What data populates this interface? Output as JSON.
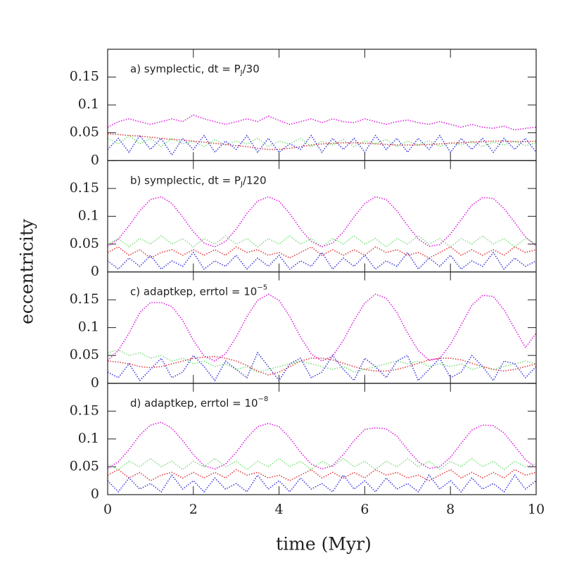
{
  "figure": {
    "xlabel": "time (Myr)",
    "ylabel": "eccentricity"
  },
  "chart_data": [
    {
      "type": "line",
      "title": [
        {
          "text": "a) symplectic, dt = P"
        },
        {
          "text": "J",
          "script": "sub"
        },
        {
          "text": "/30"
        }
      ],
      "x": [
        0,
        0.25,
        0.5,
        0.75,
        1,
        1.25,
        1.5,
        1.75,
        2,
        2.25,
        2.5,
        2.75,
        3,
        3.25,
        3.5,
        3.75,
        4,
        4.25,
        4.5,
        4.75,
        5,
        5.25,
        5.5,
        5.75,
        6,
        6.25,
        6.5,
        6.75,
        7,
        7.25,
        7.5,
        7.75,
        8,
        8.25,
        8.5,
        8.75,
        9,
        9.25,
        9.5,
        9.75,
        10
      ],
      "xlim": [
        0,
        10
      ],
      "xticks": [
        0,
        2,
        4,
        6,
        8,
        10
      ],
      "ylim": [
        0,
        0.2
      ],
      "yticks": [
        0,
        0.05,
        0.1,
        0.15
      ],
      "series": [
        {
          "color": "#80e080",
          "values": [
            0.04,
            0.03,
            0.045,
            0.03,
            0.04,
            0.025,
            0.04,
            0.03,
            0.035,
            0.025,
            0.038,
            0.028,
            0.035,
            0.03,
            0.04,
            0.025,
            0.035,
            0.03,
            0.04,
            0.025,
            0.035,
            0.028,
            0.038,
            0.025,
            0.035,
            0.03,
            0.038,
            0.025,
            0.035,
            0.028,
            0.036,
            0.025,
            0.033,
            0.028,
            0.035,
            0.025,
            0.033,
            0.028,
            0.035,
            0.027,
            0.032
          ]
        },
        {
          "color": "#e04040",
          "values": [
            0.048,
            0.047,
            0.045,
            0.044,
            0.042,
            0.04,
            0.038,
            0.037,
            0.035,
            0.033,
            0.031,
            0.029,
            0.027,
            0.025,
            0.022,
            0.02,
            0.02,
            0.022,
            0.025,
            0.028,
            0.03,
            0.031,
            0.032,
            0.032,
            0.031,
            0.03,
            0.029,
            0.028,
            0.028,
            0.028,
            0.029,
            0.03,
            0.031,
            0.032,
            0.033,
            0.034,
            0.035,
            0.035,
            0.034,
            0.034,
            0.035
          ]
        },
        {
          "color": "#4040e0",
          "values": [
            0.02,
            0.04,
            0.015,
            0.045,
            0.02,
            0.04,
            0.01,
            0.04,
            0.02,
            0.045,
            0.015,
            0.035,
            0.02,
            0.045,
            0.015,
            0.04,
            0.015,
            0.03,
            0.02,
            0.045,
            0.015,
            0.04,
            0.02,
            0.04,
            0.015,
            0.045,
            0.02,
            0.04,
            0.015,
            0.04,
            0.02,
            0.045,
            0.015,
            0.04,
            0.02,
            0.04,
            0.015,
            0.04,
            0.02,
            0.04,
            0.015
          ]
        },
        {
          "color": "#e020e0",
          "values": [
            0.06,
            0.07,
            0.075,
            0.07,
            0.065,
            0.07,
            0.075,
            0.07,
            0.082,
            0.075,
            0.07,
            0.065,
            0.07,
            0.075,
            0.07,
            0.08,
            0.072,
            0.065,
            0.07,
            0.075,
            0.068,
            0.075,
            0.07,
            0.068,
            0.075,
            0.07,
            0.065,
            0.07,
            0.073,
            0.068,
            0.065,
            0.07,
            0.065,
            0.06,
            0.065,
            0.06,
            0.058,
            0.062,
            0.055,
            0.058,
            0.06
          ]
        }
      ]
    },
    {
      "type": "line",
      "title": [
        {
          "text": "b) symplectic, dt = P"
        },
        {
          "text": "J",
          "script": "sub"
        },
        {
          "text": "/120"
        }
      ],
      "x": [
        0,
        0.25,
        0.5,
        0.75,
        1,
        1.25,
        1.5,
        1.75,
        2,
        2.25,
        2.5,
        2.75,
        3,
        3.25,
        3.5,
        3.75,
        4,
        4.25,
        4.5,
        4.75,
        5,
        5.25,
        5.5,
        5.75,
        6,
        6.25,
        6.5,
        6.75,
        7,
        7.25,
        7.5,
        7.75,
        8,
        8.25,
        8.5,
        8.75,
        9,
        9.25,
        9.5,
        9.75,
        10
      ],
      "xlim": [
        0,
        10
      ],
      "xticks": [
        0,
        2,
        4,
        6,
        8,
        10
      ],
      "ylim": [
        0,
        0.2
      ],
      "yticks": [
        0,
        0.05,
        0.1,
        0.15
      ],
      "series": [
        {
          "color": "#80e080",
          "values": [
            0.05,
            0.06,
            0.045,
            0.06,
            0.05,
            0.065,
            0.05,
            0.06,
            0.045,
            0.06,
            0.05,
            0.065,
            0.05,
            0.06,
            0.045,
            0.06,
            0.05,
            0.065,
            0.05,
            0.06,
            0.045,
            0.06,
            0.05,
            0.065,
            0.05,
            0.06,
            0.045,
            0.06,
            0.05,
            0.065,
            0.05,
            0.06,
            0.045,
            0.06,
            0.05,
            0.065,
            0.05,
            0.06,
            0.045,
            0.06,
            0.05
          ]
        },
        {
          "color": "#e04040",
          "values": [
            0.035,
            0.045,
            0.03,
            0.04,
            0.025,
            0.035,
            0.04,
            0.03,
            0.04,
            0.03,
            0.04,
            0.03,
            0.045,
            0.035,
            0.04,
            0.03,
            0.035,
            0.025,
            0.035,
            0.045,
            0.03,
            0.04,
            0.03,
            0.04,
            0.03,
            0.045,
            0.035,
            0.04,
            0.03,
            0.035,
            0.025,
            0.035,
            0.045,
            0.03,
            0.04,
            0.03,
            0.04,
            0.03,
            0.045,
            0.035,
            0.04
          ]
        },
        {
          "color": "#4040e0",
          "values": [
            0.02,
            0.005,
            0.025,
            0.01,
            0.03,
            0.005,
            0.02,
            0.01,
            0.035,
            0.005,
            0.02,
            0.01,
            0.03,
            0.005,
            0.025,
            0.01,
            0.03,
            0.005,
            0.02,
            0.01,
            0.035,
            0.005,
            0.025,
            0.01,
            0.03,
            0.005,
            0.02,
            0.01,
            0.035,
            0.005,
            0.025,
            0.01,
            0.03,
            0.005,
            0.02,
            0.01,
            0.035,
            0.005,
            0.025,
            0.01,
            0.02
          ]
        },
        {
          "color": "#e020e0",
          "values": [
            0.046,
            0.059,
            0.083,
            0.11,
            0.13,
            0.135,
            0.123,
            0.099,
            0.072,
            0.052,
            0.045,
            0.055,
            0.077,
            0.105,
            0.127,
            0.135,
            0.127,
            0.105,
            0.077,
            0.055,
            0.045,
            0.052,
            0.072,
            0.099,
            0.123,
            0.135,
            0.13,
            0.11,
            0.083,
            0.059,
            0.046,
            0.049,
            0.068,
            0.094,
            0.12,
            0.134,
            0.132,
            0.114,
            0.089,
            0.063,
            0.047
          ]
        }
      ]
    },
    {
      "type": "line",
      "title": [
        {
          "text": "c) adaptkep, errtol = 10"
        },
        {
          "text": "−5",
          "script": "sup"
        }
      ],
      "x": [
        0,
        0.25,
        0.5,
        0.75,
        1,
        1.25,
        1.5,
        1.75,
        2,
        2.25,
        2.5,
        2.75,
        3,
        3.25,
        3.5,
        3.75,
        4,
        4.25,
        4.5,
        4.75,
        5,
        5.25,
        5.5,
        5.75,
        6,
        6.25,
        6.5,
        6.75,
        7,
        7.25,
        7.5,
        7.75,
        8,
        8.25,
        8.5,
        8.75,
        9,
        9.25,
        9.5,
        9.75,
        10
      ],
      "xlim": [
        0,
        10
      ],
      "xticks": [
        0,
        2,
        4,
        6,
        8,
        10
      ],
      "ylim": [
        0,
        0.2
      ],
      "yticks": [
        0,
        0.05,
        0.1,
        0.15
      ],
      "series": [
        {
          "color": "#80e080",
          "values": [
            0.055,
            0.06,
            0.05,
            0.055,
            0.045,
            0.05,
            0.04,
            0.045,
            0.035,
            0.04,
            0.03,
            0.035,
            0.025,
            0.03,
            0.02,
            0.025,
            0.03,
            0.035,
            0.04,
            0.035,
            0.03,
            0.025,
            0.03,
            0.02,
            0.025,
            0.03,
            0.035,
            0.04,
            0.035,
            0.04,
            0.03,
            0.035,
            0.03,
            0.035,
            0.025,
            0.03,
            0.025,
            0.03,
            0.035,
            0.04,
            0.035
          ]
        },
        {
          "color": "#e04040",
          "values": [
            0.04,
            0.038,
            0.035,
            0.03,
            0.028,
            0.03,
            0.035,
            0.04,
            0.045,
            0.047,
            0.048,
            0.045,
            0.04,
            0.032,
            0.022,
            0.015,
            0.02,
            0.03,
            0.04,
            0.045,
            0.045,
            0.042,
            0.036,
            0.03,
            0.025,
            0.022,
            0.022,
            0.025,
            0.03,
            0.036,
            0.042,
            0.045,
            0.045,
            0.042,
            0.036,
            0.03,
            0.025,
            0.022,
            0.025,
            0.03,
            0.035
          ]
        },
        {
          "color": "#4040e0",
          "values": [
            0.02,
            0.01,
            0.035,
            0.005,
            0.025,
            0.045,
            0.01,
            0.02,
            0.05,
            0.03,
            0.005,
            0.04,
            0.025,
            0.01,
            0.055,
            0.03,
            0.005,
            0.035,
            0.045,
            0.01,
            0.02,
            0.05,
            0.025,
            0.005,
            0.045,
            0.03,
            0.01,
            0.04,
            0.05,
            0.005,
            0.025,
            0.045,
            0.01,
            0.02,
            0.05,
            0.03,
            0.005,
            0.04,
            0.035,
            0.01,
            0.03
          ]
        },
        {
          "color": "#e020e0",
          "values": [
            0.041,
            0.059,
            0.09,
            0.127,
            0.145,
            0.145,
            0.138,
            0.113,
            0.077,
            0.049,
            0.04,
            0.053,
            0.083,
            0.12,
            0.149,
            0.16,
            0.149,
            0.12,
            0.083,
            0.053,
            0.04,
            0.049,
            0.077,
            0.113,
            0.144,
            0.16,
            0.153,
            0.127,
            0.09,
            0.059,
            0.041,
            0.045,
            0.07,
            0.105,
            0.14,
            0.158,
            0.156,
            0.132,
            0.098,
            0.064,
            0.09
          ]
        }
      ]
    },
    {
      "type": "line",
      "title": [
        {
          "text": "d) adaptkep, errtol = 10"
        },
        {
          "text": "−8",
          "script": "sup"
        }
      ],
      "x": [
        0,
        0.25,
        0.5,
        0.75,
        1,
        1.25,
        1.5,
        1.75,
        2,
        2.25,
        2.5,
        2.75,
        3,
        3.25,
        3.5,
        3.75,
        4,
        4.25,
        4.5,
        4.75,
        5,
        5.25,
        5.5,
        5.75,
        6,
        6.25,
        6.5,
        6.75,
        7,
        7.25,
        7.5,
        7.75,
        8,
        8.25,
        8.5,
        8.75,
        9,
        9.25,
        9.5,
        9.75,
        10
      ],
      "xlim": [
        0,
        10
      ],
      "xticks": [
        0,
        2,
        4,
        6,
        8,
        10
      ],
      "ylim": [
        0,
        0.2
      ],
      "yticks": [
        0,
        0.05,
        0.1,
        0.15
      ],
      "series": [
        {
          "color": "#80e080",
          "values": [
            0.055,
            0.045,
            0.06,
            0.05,
            0.065,
            0.05,
            0.06,
            0.045,
            0.06,
            0.05,
            0.065,
            0.05,
            0.06,
            0.045,
            0.06,
            0.05,
            0.065,
            0.05,
            0.06,
            0.045,
            0.06,
            0.05,
            0.065,
            0.05,
            0.06,
            0.045,
            0.06,
            0.05,
            0.065,
            0.05,
            0.06,
            0.045,
            0.06,
            0.05,
            0.065,
            0.05,
            0.06,
            0.045,
            0.06,
            0.05,
            0.055
          ]
        },
        {
          "color": "#e04040",
          "values": [
            0.035,
            0.045,
            0.03,
            0.04,
            0.025,
            0.035,
            0.04,
            0.03,
            0.04,
            0.03,
            0.04,
            0.03,
            0.045,
            0.035,
            0.04,
            0.03,
            0.035,
            0.025,
            0.035,
            0.045,
            0.03,
            0.04,
            0.03,
            0.04,
            0.03,
            0.045,
            0.035,
            0.04,
            0.03,
            0.035,
            0.025,
            0.035,
            0.045,
            0.03,
            0.04,
            0.03,
            0.04,
            0.03,
            0.045,
            0.035,
            0.04
          ]
        },
        {
          "color": "#4040e0",
          "values": [
            0.025,
            0.005,
            0.03,
            0.01,
            0.02,
            0.005,
            0.035,
            0.01,
            0.025,
            0.005,
            0.03,
            0.01,
            0.02,
            0.005,
            0.035,
            0.01,
            0.025,
            0.005,
            0.03,
            0.01,
            0.02,
            0.005,
            0.035,
            0.01,
            0.025,
            0.005,
            0.03,
            0.01,
            0.02,
            0.005,
            0.035,
            0.01,
            0.025,
            0.005,
            0.03,
            0.01,
            0.02,
            0.005,
            0.035,
            0.01,
            0.025
          ]
        },
        {
          "color": "#e020e0",
          "values": [
            0.047,
            0.059,
            0.081,
            0.107,
            0.125,
            0.13,
            0.119,
            0.097,
            0.072,
            0.052,
            0.046,
            0.055,
            0.076,
            0.102,
            0.122,
            0.128,
            0.122,
            0.102,
            0.076,
            0.055,
            0.046,
            0.052,
            0.072,
            0.097,
            0.117,
            0.12,
            0.118,
            0.105,
            0.081,
            0.059,
            0.047,
            0.05,
            0.067,
            0.092,
            0.116,
            0.125,
            0.124,
            0.111,
            0.087,
            0.063,
            0.048
          ]
        }
      ]
    }
  ]
}
